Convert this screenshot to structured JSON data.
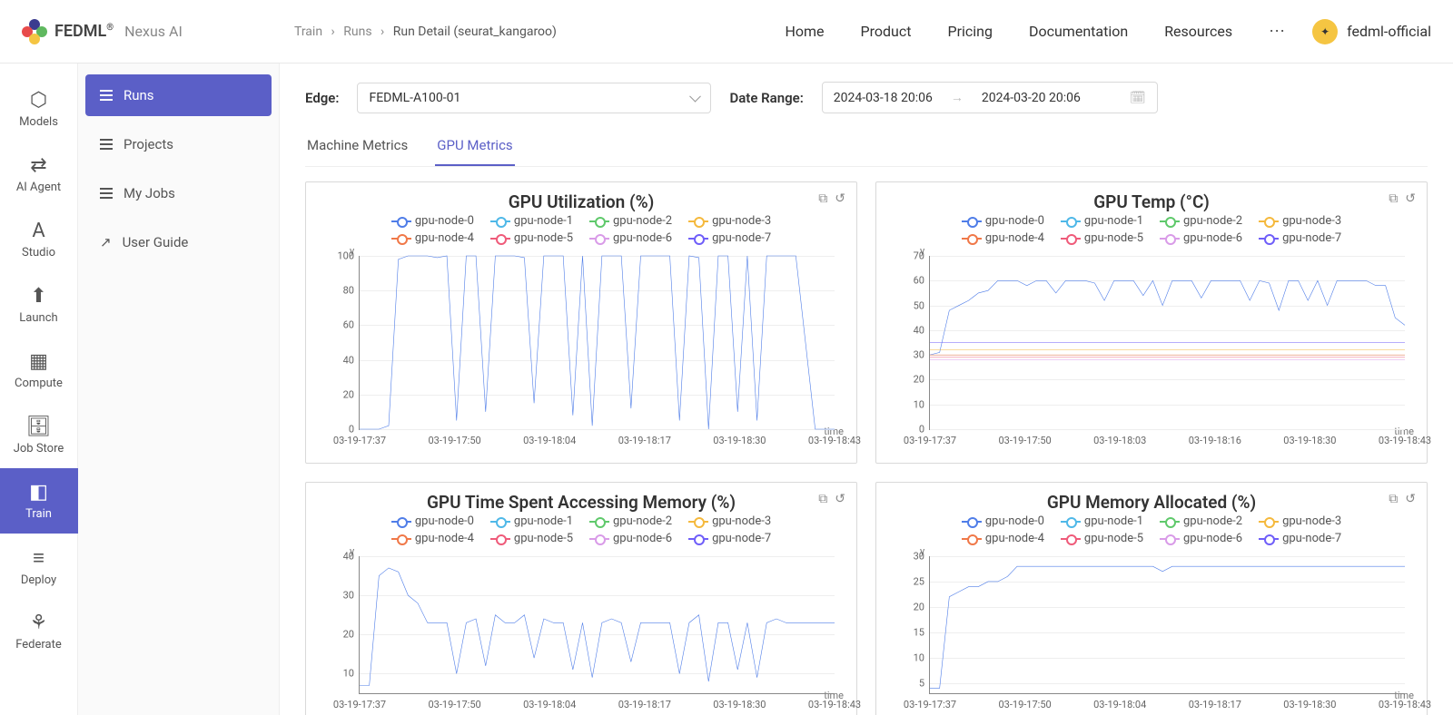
{
  "brand": {
    "name": "FEDML",
    "reg": "®",
    "sub": "Nexus AI"
  },
  "breadcrumb": [
    "Train",
    "Runs",
    "Run Detail (seurat_kangaroo)"
  ],
  "topnav": [
    "Home",
    "Product",
    "Pricing",
    "Documentation",
    "Resources"
  ],
  "user": {
    "name": "fedml-official"
  },
  "rail": [
    {
      "label": "Models",
      "icon": "⬡"
    },
    {
      "label": "AI Agent",
      "icon": "⇄"
    },
    {
      "label": "Studio",
      "icon": "A"
    },
    {
      "label": "Launch",
      "icon": "⬆"
    },
    {
      "label": "Compute",
      "icon": "▦"
    },
    {
      "label": "Job Store",
      "icon": "🗄"
    },
    {
      "label": "Train",
      "icon": "◧",
      "active": true
    },
    {
      "label": "Deploy",
      "icon": "≡"
    },
    {
      "label": "Federate",
      "icon": "⚘"
    }
  ],
  "sidemenu": [
    {
      "label": "Runs",
      "active": true
    },
    {
      "label": "Projects"
    },
    {
      "label": "My Jobs"
    },
    {
      "label": "User Guide",
      "icon": "guide"
    }
  ],
  "controls": {
    "edge_label": "Edge:",
    "edge_value": "FEDML-A100-01",
    "date_label": "Date Range:",
    "date_start": "2024-03-18 20:06",
    "date_end": "2024-03-20 20:06"
  },
  "tabs": [
    {
      "label": "Machine Metrics"
    },
    {
      "label": "GPU Metrics",
      "active": true
    }
  ],
  "legend_series": [
    {
      "name": "gpu-node-0",
      "color": "#5b8ff9"
    },
    {
      "name": "gpu-node-1",
      "color": "#5ad8a6"
    },
    {
      "name": "gpu-node-2",
      "color": "#5d7092"
    },
    {
      "name": "gpu-node-3",
      "color": "#f6bd16"
    },
    {
      "name": "gpu-node-4",
      "color": "#e8684a"
    },
    {
      "name": "gpu-node-5",
      "color": "#e8684a"
    },
    {
      "name": "gpu-node-6",
      "color": "#c894e0"
    },
    {
      "name": "gpu-node-7",
      "color": "#6f5ef9"
    }
  ],
  "legend_colors": [
    "#4f7de8",
    "#4fb8e8",
    "#5fc96b",
    "#f5b93d",
    "#f07848",
    "#ef5b7a",
    "#d99be8",
    "#6f5ef9"
  ],
  "charts": {
    "util": {
      "title": "GPU Utilization (%)",
      "ymin": 0,
      "ymax": 100,
      "ystep": 20,
      "xticks": [
        "03-19-17:37",
        "03-19-17:50",
        "03-19-18:04",
        "03-19-18:17",
        "03-19-18:30",
        "03-19-18:43"
      ],
      "series0": [
        0,
        0,
        0,
        2,
        98,
        100,
        100,
        100,
        99,
        100,
        5,
        100,
        100,
        10,
        100,
        100,
        100,
        99,
        15,
        100,
        100,
        100,
        8,
        100,
        2,
        100,
        100,
        100,
        12,
        100,
        100,
        100,
        100,
        5,
        100,
        99,
        0,
        100,
        100,
        10,
        100,
        5,
        100,
        100,
        100,
        100,
        50,
        0,
        0,
        0
      ]
    },
    "temp": {
      "title": "GPU Temp (°C)",
      "ymin": 0,
      "ymax": 70,
      "ystep": 10,
      "xticks": [
        "03-19-17:37",
        "03-19-17:50",
        "03-19-18:03",
        "03-19-18:16",
        "03-19-18:30",
        "03-19-18:43"
      ],
      "series0": [
        30,
        31,
        48,
        50,
        52,
        55,
        56,
        60,
        60,
        60,
        58,
        60,
        60,
        55,
        60,
        60,
        60,
        59,
        52,
        60,
        60,
        60,
        54,
        60,
        50,
        60,
        60,
        60,
        53,
        60,
        60,
        60,
        60,
        52,
        60,
        59,
        48,
        60,
        60,
        52,
        60,
        50,
        60,
        60,
        60,
        60,
        58,
        58,
        45,
        42
      ],
      "flatlines": [
        {
          "y": 35,
          "color": "#6f5ef9"
        },
        {
          "y": 32,
          "color": "#f5b93d"
        },
        {
          "y": 30,
          "color": "#f07848"
        },
        {
          "y": 29,
          "color": "#ef5b7a"
        },
        {
          "y": 28,
          "color": "#d99be8"
        }
      ]
    },
    "mem_time": {
      "title": "GPU Time Spent Accessing Memory (%)",
      "ymin": 5,
      "ymax": 40,
      "ystep": 10,
      "ytick_start": 10,
      "xticks": [
        "03-19-17:37",
        "03-19-17:50",
        "03-19-18:04",
        "03-19-18:17",
        "03-19-18:30",
        "03-19-18:43"
      ],
      "series0": [
        7,
        7,
        35,
        37,
        36,
        30,
        28,
        23,
        23,
        23,
        10,
        23,
        24,
        12,
        25,
        23,
        23,
        25,
        14,
        24,
        23,
        23,
        11,
        23,
        9,
        23,
        24,
        23,
        13,
        23,
        23,
        23,
        23,
        10,
        23,
        25,
        8,
        23,
        23,
        11,
        23,
        9,
        23,
        24,
        23,
        23,
        23,
        23,
        23,
        23
      ]
    },
    "mem_alloc": {
      "title": "GPU Memory Allocated (%)",
      "ymin": 3,
      "ymax": 30,
      "ystep": 5,
      "ytick_start": 5,
      "xticks": [
        "03-19-17:37",
        "03-19-17:50",
        "03-19-18:04",
        "03-19-18:17",
        "03-19-18:30",
        "03-19-18:43"
      ],
      "series0": [
        4,
        4,
        22,
        23,
        24,
        24,
        25,
        25,
        26,
        28,
        28,
        28,
        28,
        28,
        28,
        28,
        28,
        28,
        28,
        28,
        28,
        28,
        28,
        28,
        27,
        28,
        28,
        28,
        28,
        28,
        28,
        28,
        28,
        28,
        28,
        28,
        28,
        28,
        28,
        28,
        28,
        28,
        28,
        28,
        28,
        28,
        28,
        28,
        28,
        28
      ]
    }
  },
  "ylabel": "y",
  "tlabel": "time"
}
